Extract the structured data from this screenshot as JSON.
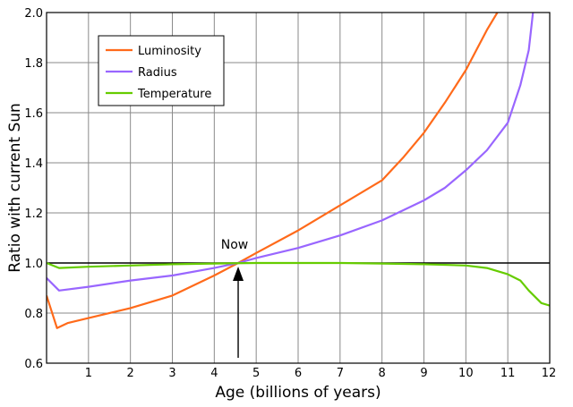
{
  "chart_data": {
    "type": "line",
    "xlabel": "Age (billions of years)",
    "ylabel": "Ratio with current Sun",
    "xlim": [
      0,
      12
    ],
    "ylim": [
      0.6,
      2.0
    ],
    "x_ticks": [
      1,
      2,
      3,
      4,
      5,
      6,
      7,
      8,
      9,
      10,
      11,
      12
    ],
    "x_tick_labels": [
      "1",
      "2",
      "3",
      "4",
      "5",
      "6",
      "7",
      "8",
      "9",
      "10",
      "11",
      "12"
    ],
    "y_ticks": [
      0.6,
      0.8,
      1.0,
      1.2,
      1.4,
      1.6,
      1.8,
      2.0
    ],
    "y_tick_labels": [
      "0.6",
      "0.8",
      "1.0",
      "1.2",
      "1.4",
      "1.6",
      "1.8",
      "2.0"
    ],
    "grid": true,
    "legend_position": "top-left",
    "reference_line": {
      "y": 1.0,
      "color": "#000000"
    },
    "annotation": {
      "text": "Now",
      "x": 4.57,
      "y": 1.0
    },
    "series": [
      {
        "name": "Luminosity",
        "color": "#ff6a1a",
        "points": [
          [
            0,
            0.87
          ],
          [
            0.25,
            0.74
          ],
          [
            0.5,
            0.76
          ],
          [
            1,
            0.78
          ],
          [
            2,
            0.82
          ],
          [
            3,
            0.87
          ],
          [
            4,
            0.95
          ],
          [
            4.57,
            1.0
          ],
          [
            5,
            1.04
          ],
          [
            6,
            1.13
          ],
          [
            7,
            1.23
          ],
          [
            8,
            1.33
          ],
          [
            8.5,
            1.42
          ],
          [
            9,
            1.52
          ],
          [
            9.5,
            1.64
          ],
          [
            10,
            1.77
          ],
          [
            10.5,
            1.93
          ],
          [
            10.75,
            2.0
          ]
        ]
      },
      {
        "name": "Radius",
        "color": "#9966ff",
        "points": [
          [
            0,
            0.94
          ],
          [
            0.3,
            0.89
          ],
          [
            1,
            0.905
          ],
          [
            2,
            0.93
          ],
          [
            3,
            0.95
          ],
          [
            4,
            0.98
          ],
          [
            4.57,
            1.0
          ],
          [
            5,
            1.02
          ],
          [
            6,
            1.06
          ],
          [
            7,
            1.11
          ],
          [
            8,
            1.17
          ],
          [
            9,
            1.25
          ],
          [
            9.5,
            1.3
          ],
          [
            10,
            1.37
          ],
          [
            10.5,
            1.45
          ],
          [
            11,
            1.56
          ],
          [
            11.3,
            1.71
          ],
          [
            11.5,
            1.85
          ],
          [
            11.6,
            2.0
          ]
        ]
      },
      {
        "name": "Temperature",
        "color": "#66cc00",
        "points": [
          [
            0,
            1.0
          ],
          [
            0.3,
            0.98
          ],
          [
            1,
            0.985
          ],
          [
            2,
            0.99
          ],
          [
            3,
            0.995
          ],
          [
            4,
            0.998
          ],
          [
            5,
            1.0
          ],
          [
            6,
            1.0
          ],
          [
            7,
            1.0
          ],
          [
            8,
            0.998
          ],
          [
            9,
            0.995
          ],
          [
            10,
            0.99
          ],
          [
            10.5,
            0.98
          ],
          [
            11,
            0.955
          ],
          [
            11.3,
            0.93
          ],
          [
            11.5,
            0.89
          ],
          [
            11.8,
            0.84
          ],
          [
            12,
            0.83
          ]
        ]
      }
    ]
  }
}
